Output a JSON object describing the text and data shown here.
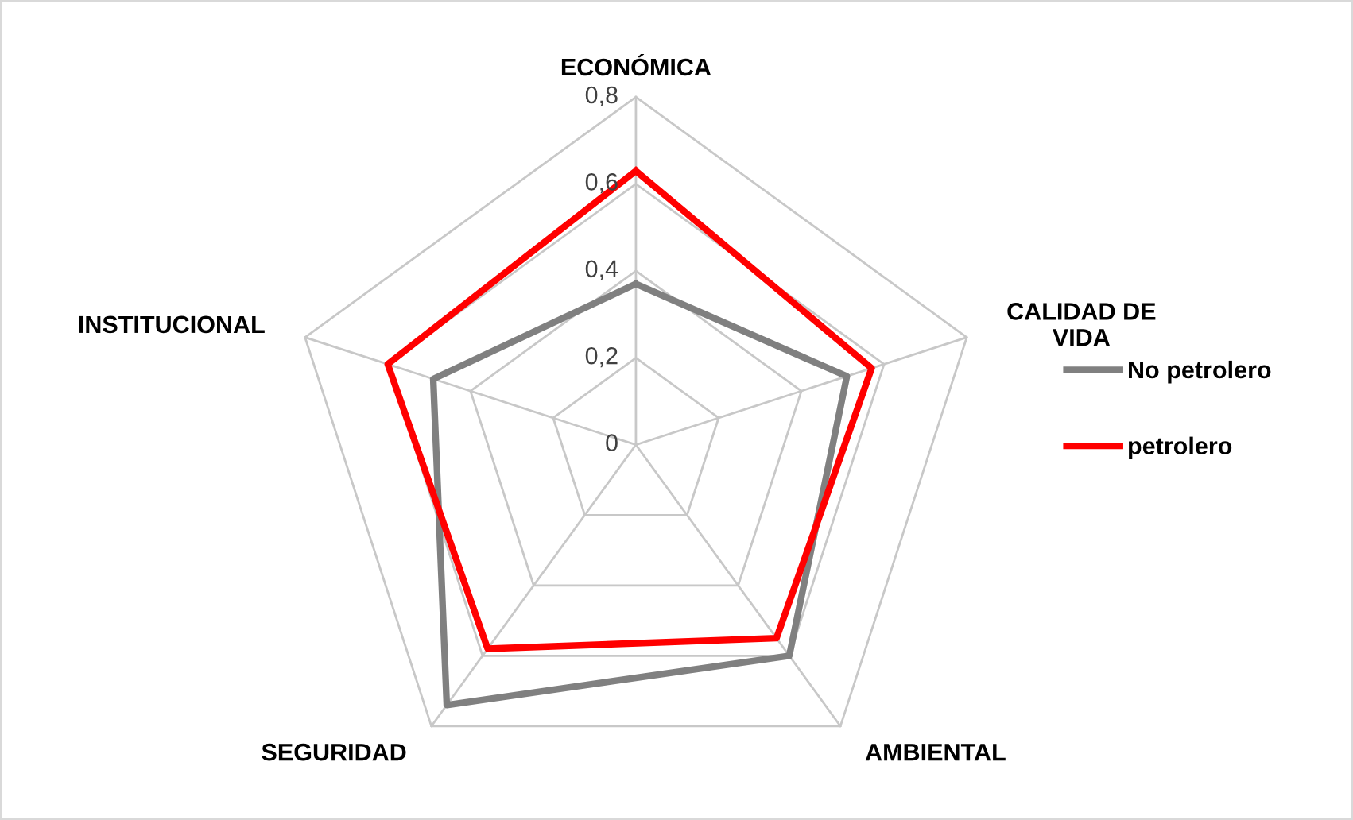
{
  "chart_data": {
    "type": "radar",
    "categories": [
      "ECONÓMICA",
      "CALIDAD DE\nVIDA",
      "AMBIENTAL",
      "SEGURIDAD",
      "INSTITUCIONAL"
    ],
    "series": [
      {
        "name": "No petrolero",
        "color": "#808080",
        "values": [
          0.37,
          0.51,
          0.6,
          0.74,
          0.49
        ]
      },
      {
        "name": "petrolero",
        "color": "#ff0000",
        "values": [
          0.63,
          0.57,
          0.55,
          0.58,
          0.6
        ]
      }
    ],
    "ylim": [
      0,
      0.8
    ],
    "yticks": [
      {
        "value": 0,
        "label": "0"
      },
      {
        "value": 0.2,
        "label": "0,2"
      },
      {
        "value": 0.4,
        "label": "0,4"
      },
      {
        "value": 0.6,
        "label": "0,6"
      },
      {
        "value": 0.8,
        "label": "0,8"
      }
    ],
    "grid": true,
    "legend": "right",
    "marker": "none",
    "line_style": "solid"
  }
}
